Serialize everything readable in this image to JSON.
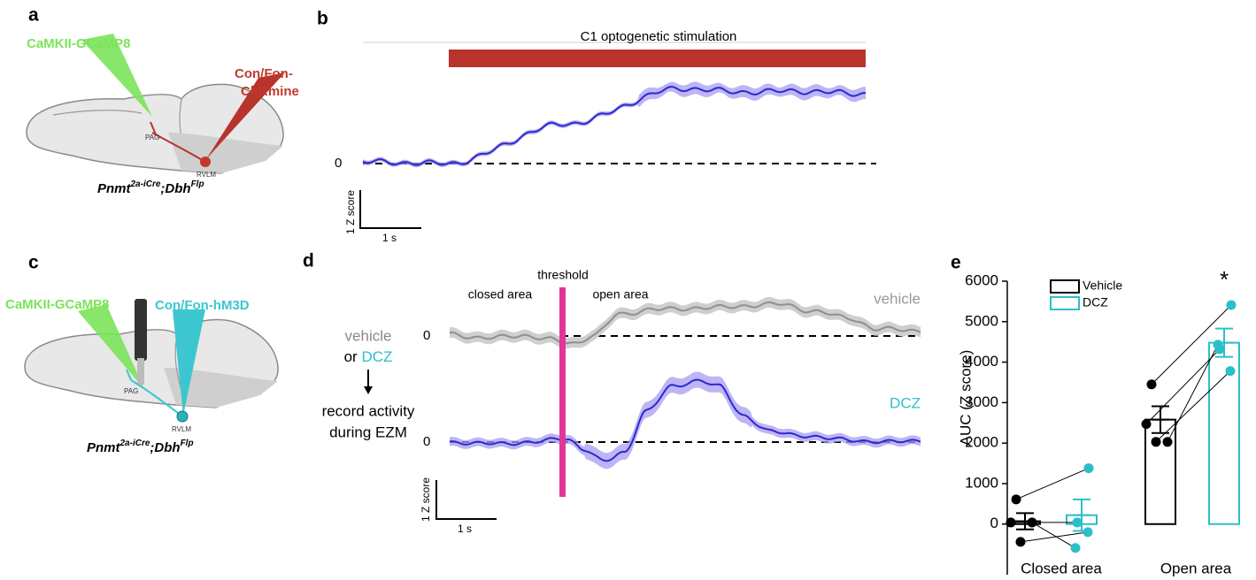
{
  "panels": {
    "a": {
      "label": "a",
      "probe1": "CaMKII-GCaMP8",
      "probe2_line1": "Con/Fon-",
      "probe2_line2": "ChRmine",
      "region1": "PAG",
      "region2": "RVLM",
      "genotype": {
        "gene1": "Pnmt",
        "sup1": "2a-iCre",
        "gene2": ";Dbh",
        "sup2": "Flp"
      }
    },
    "b": {
      "label": "b",
      "stim_label": "C1 optogenetic stimulation",
      "zero_label": "0",
      "scale_y": "1 Z score",
      "scale_x": "1 s"
    },
    "c": {
      "label": "c",
      "probe1": "CaMKII-GCaMP8",
      "probe2": "Con/Fon-hM3D",
      "region1": "PAG",
      "region2": "RVLM",
      "genotype": {
        "gene1": "Pnmt",
        "sup1": "2a-iCre",
        "gene2": ";Dbh",
        "sup2": "Flp"
      }
    },
    "d": {
      "label": "d",
      "threshold": "threshold",
      "closed": "closed area",
      "open": "open area",
      "trace1": "vehicle",
      "trace2": "DCZ",
      "zero1": "0",
      "zero2": "0",
      "flow_vehicle": "vehicle",
      "flow_or": "or",
      "flow_dcz": "DCZ",
      "flow_line2": "record activity",
      "flow_line3": "during EZM",
      "scale_y": "1 Z score",
      "scale_x": "1 s"
    },
    "e": {
      "label": "e"
    }
  },
  "chart_data": {
    "type": "bar",
    "ylabel": "AUC (Z score)",
    "categories": [
      "Closed area",
      "Open area"
    ],
    "series": [
      {
        "name": "Vehicle",
        "color": "#000000",
        "values": [
          70,
          2580
        ],
        "errors": [
          200,
          330
        ],
        "points": [
          [
            610,
            40,
            40,
            -440
          ],
          [
            3450,
            2470,
            2030,
            2030
          ]
        ]
      },
      {
        "name": "DCZ",
        "color": "#2bbfc8",
        "values": [
          220,
          4480
        ],
        "errors": [
          390,
          350
        ],
        "points": [
          [
            1380,
            40,
            -590,
            -200
          ],
          [
            5410,
            4320,
            4430,
            3780
          ]
        ]
      }
    ],
    "ylim": [
      -1250,
      6000
    ],
    "yticks": [
      0,
      1000,
      2000,
      3000,
      4000,
      5000,
      6000
    ],
    "annotation": "*",
    "legend": "top-left"
  }
}
